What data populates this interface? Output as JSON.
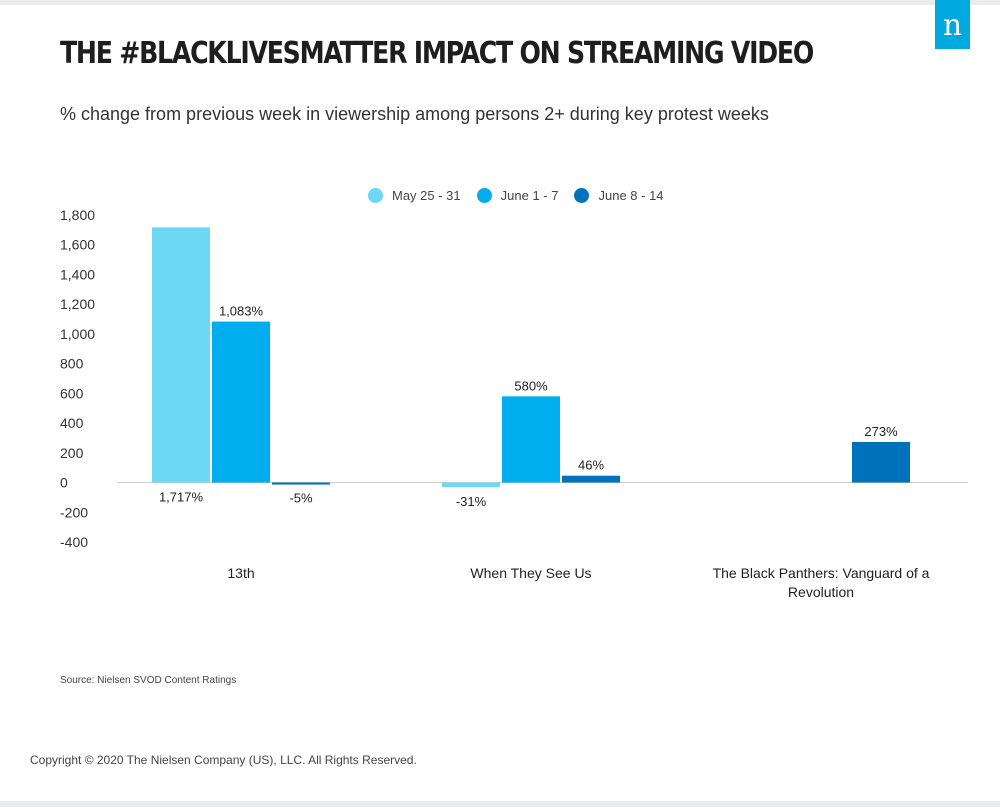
{
  "header": {
    "title": "THE #BLACKLIVESMATTER IMPACT ON STREAMING VIDEO",
    "subtitle": "% change from previous week in viewership among persons 2+ during key protest weeks",
    "logo_text": "n"
  },
  "footer": {
    "source": "Source: Nielsen SVOD Content Ratings",
    "copyright": "Copyright © 2020 The Nielsen Company (US), LLC. All Rights Reserved."
  },
  "colors": {
    "series": [
      "#6dd8f6",
      "#00aeef",
      "#0072bc"
    ],
    "logo": "#00a9e0",
    "axis": "#cccccc"
  },
  "chart_data": {
    "type": "bar",
    "categories": [
      "13th",
      "When They See Us",
      "The Black Panthers: Vanguard of a Revolution"
    ],
    "series": [
      {
        "name": "May 25 - 31",
        "values": [
          1717,
          -31,
          null
        ],
        "labels": [
          "1,717%",
          "-31%",
          ""
        ]
      },
      {
        "name": "June 1 - 7",
        "values": [
          1083,
          580,
          null
        ],
        "labels": [
          "1,083%",
          "580%",
          ""
        ]
      },
      {
        "name": "June 8 - 14",
        "values": [
          -5,
          46,
          273
        ],
        "labels": [
          "-5%",
          "46%",
          "273%"
        ]
      }
    ],
    "ylim": [
      -400,
      1800
    ],
    "yticks": [
      -400,
      -200,
      0,
      200,
      400,
      600,
      800,
      1000,
      1200,
      1400,
      1600,
      1800
    ],
    "ytick_labels": [
      "-400",
      "-200",
      "0",
      "200",
      "400",
      "600",
      "800",
      "1,000",
      "1,200",
      "1,400",
      "1,600",
      "1,800"
    ],
    "legend": "top-center",
    "grid": false
  }
}
